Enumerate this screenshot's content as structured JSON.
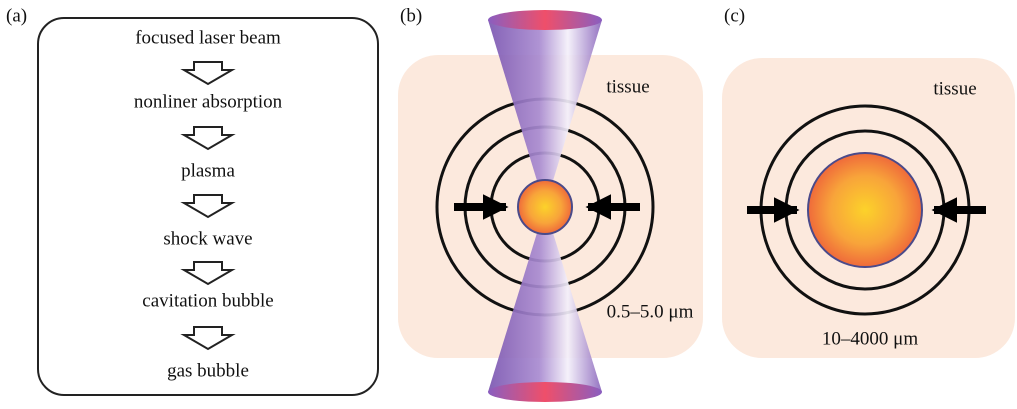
{
  "panels": [
    {
      "label": "(a)",
      "steps": [
        "focused laser beam",
        "nonliner absorption",
        "plasma",
        "shock wave",
        "cavitation bubble",
        "gas bubble"
      ]
    },
    {
      "label": "(b)",
      "medium": "tissue",
      "size": "0.5–5.0 μm"
    },
    {
      "label": "(c)",
      "medium": "tissue",
      "size": "10–4000 μm"
    }
  ]
}
